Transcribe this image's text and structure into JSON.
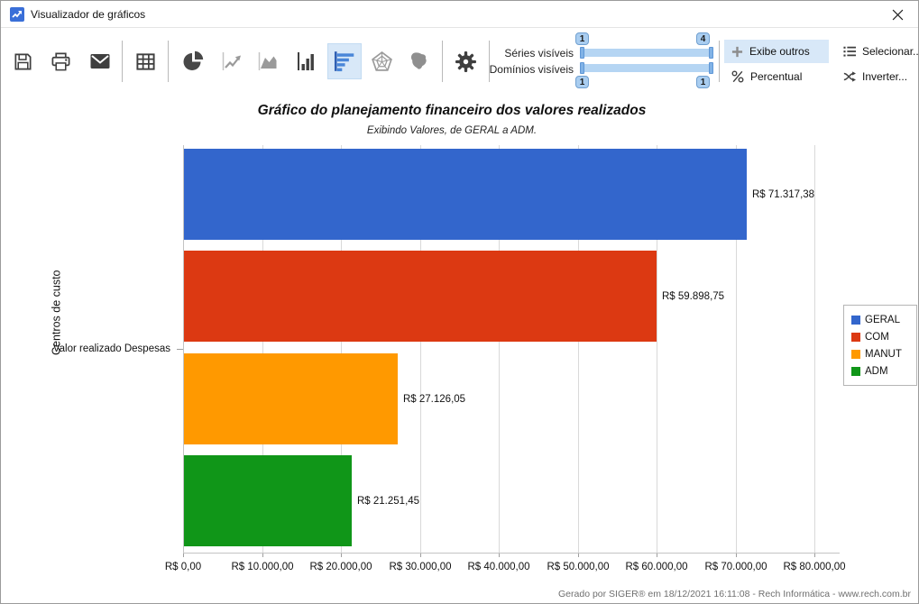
{
  "window": {
    "title": "Visualizador de gráficos"
  },
  "toolbar": {
    "sliders": {
      "series_label": "Séries visíveis",
      "domains_label": "Domínios visíveis",
      "series_min": "1",
      "series_max": "4",
      "domains_min": "1",
      "domains_max": "1"
    },
    "buttons": {
      "exibe_outros": "Exibe outros",
      "percentual": "Percentual",
      "selecionar": "Selecionar...",
      "inverter": "Inverter..."
    }
  },
  "chart_data": {
    "type": "bar",
    "orientation": "horizontal",
    "title": "Gráfico do planejamento financeiro dos valores realizados",
    "subtitle": "Exibindo Valores, de GERAL a ADM.",
    "ylabel": "Centros de custo",
    "category": "Valor realizado Despesas",
    "series": [
      {
        "name": "GERAL",
        "value": 71317.38,
        "label": "R$ 71.317,38",
        "color": "#3366cc"
      },
      {
        "name": "COM",
        "value": 59898.75,
        "label": "R$ 59.898,75",
        "color": "#dc3912"
      },
      {
        "name": "MANUT",
        "value": 27126.05,
        "label": "R$ 27.126,05",
        "color": "#ff9900"
      },
      {
        "name": "ADM",
        "value": 21251.45,
        "label": "R$ 21.251,45",
        "color": "#109618"
      }
    ],
    "xlim": [
      0,
      80000
    ],
    "x_ticks": [
      "R$ 0,00",
      "R$ 10.000,00",
      "R$ 20.000,00",
      "R$ 30.000,00",
      "R$ 40.000,00",
      "R$ 50.000,00",
      "R$ 60.000,00",
      "R$ 70.000,00",
      "R$ 80.000,00"
    ],
    "grid": true,
    "legend_position": "right"
  },
  "footer": {
    "text": "Gerado por SIGER® em 18/12/2021 16:11:08 - Rech Informática - www.rech.com.br"
  }
}
